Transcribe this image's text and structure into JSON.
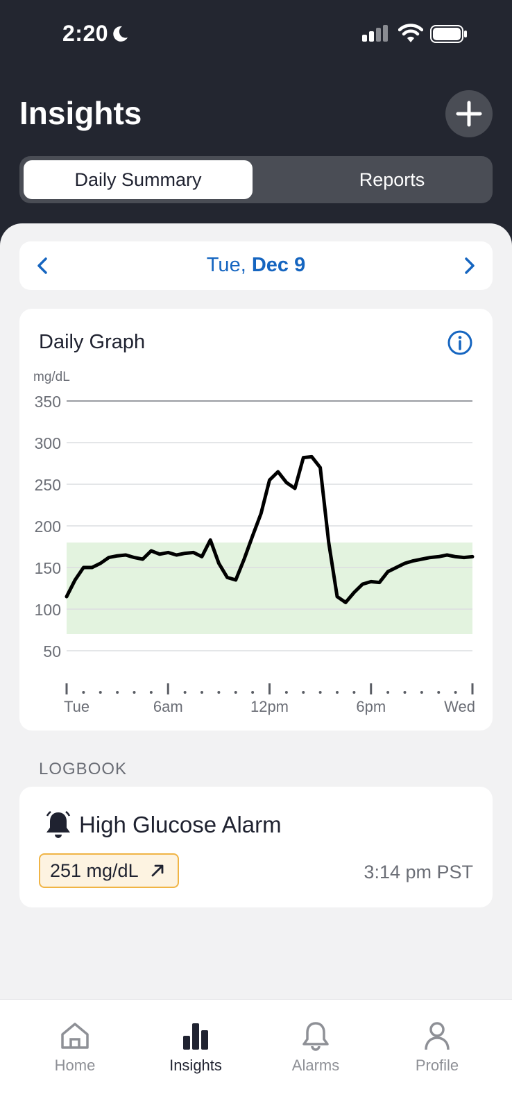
{
  "status": {
    "time": "2:20"
  },
  "header": {
    "title": "Insights"
  },
  "segments": {
    "daily": "Daily Summary",
    "reports": "Reports"
  },
  "date": {
    "day": "Tue,",
    "date": "Dec 9"
  },
  "graph": {
    "title": "Daily Graph",
    "unit": "mg/dL",
    "yticks": [
      "350",
      "300",
      "250",
      "200",
      "150",
      "100",
      "50"
    ],
    "xticks": [
      "Tue",
      "6am",
      "12pm",
      "6pm",
      "Wed"
    ],
    "target_color": "#e3f3df"
  },
  "chart_data": {
    "type": "line",
    "ylabel": "mg/dL",
    "ylim": [
      50,
      350
    ],
    "target_range": [
      70,
      180
    ],
    "x_unit": "hours",
    "x": [
      0,
      0.5,
      1,
      1.5,
      2,
      2.5,
      3,
      3.5,
      4,
      4.5,
      5,
      5.5,
      6,
      6.5,
      7,
      7.5,
      8,
      8.5,
      9,
      9.5,
      10,
      10.5,
      11,
      11.5,
      12,
      12.5,
      13,
      13.5,
      14,
      14.5,
      15,
      15.5,
      16,
      16.5,
      17,
      17.5,
      18,
      18.5,
      19,
      19.5,
      20,
      20.5,
      21,
      21.5,
      22,
      22.5,
      23,
      23.5,
      24
    ],
    "y": [
      115,
      135,
      150,
      150,
      155,
      162,
      164,
      165,
      162,
      160,
      170,
      166,
      168,
      165,
      167,
      168,
      163,
      183,
      155,
      138,
      135,
      160,
      188,
      215,
      255,
      265,
      252,
      245,
      282,
      283,
      270,
      180,
      115,
      108,
      120,
      130,
      133,
      132,
      145,
      150,
      155,
      158,
      160,
      162,
      163,
      165,
      163,
      162,
      163
    ]
  },
  "logbook": {
    "label": "LOGBOOK",
    "title": "High Glucose Alarm",
    "value": "251 mg/dL",
    "time": "3:14 pm PST"
  },
  "tabs": {
    "home": "Home",
    "insights": "Insights",
    "alarms": "Alarms",
    "profile": "Profile"
  }
}
